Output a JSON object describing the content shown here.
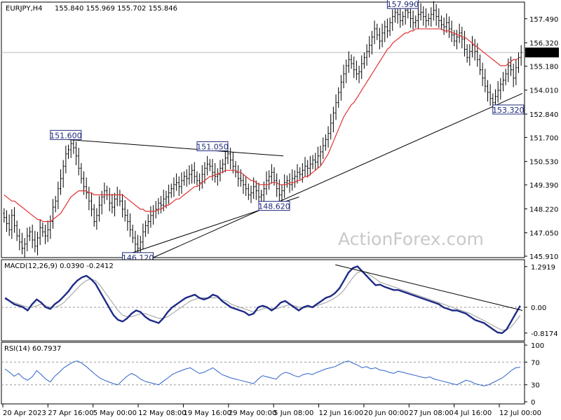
{
  "chart_data": {
    "type": "candlestick",
    "header": {
      "symbol": "EURJPY,H4",
      "ohlc": "155.840 155.969 155.702 155.846"
    },
    "watermark": "ActionForex.com",
    "last_price": "155.846",
    "price_axis": {
      "ticks": [
        "157.490",
        "156.320",
        "155.180",
        "154.010",
        "152.840",
        "151.700",
        "150.530",
        "149.390",
        "148.220",
        "147.050",
        "145.910"
      ],
      "range": [
        145.91,
        158.2
      ]
    },
    "time_axis": [
      "20 Apr 2023",
      "27 Apr 16:00",
      "5 May 00:00",
      "12 May 08:00",
      "19 May 16:00",
      "29 May 00:00",
      "5 Jun 08:00",
      "12 Jun 16:00",
      "20 Jun 00:00",
      "27 Jun 08:00",
      "4 Jul 16:00",
      "12 Jul 00:00"
    ],
    "price_labels": [
      {
        "text": "151.600",
        "value": 151.6
      },
      {
        "text": "151.050",
        "value": 151.05
      },
      {
        "text": "148.620",
        "value": 148.62
      },
      {
        "text": "146.120",
        "value": 146.12
      },
      {
        "text": "157.990",
        "value": 157.99
      },
      {
        "text": "153.320",
        "value": 153.32
      }
    ],
    "closes": [
      147.8,
      147.5,
      147.2,
      147.9,
      147.4,
      146.9,
      146.6,
      146.3,
      146.5,
      146.9,
      147.1,
      146.7,
      146.4,
      146.8,
      147.3,
      147.1,
      146.9,
      147.2,
      147.6,
      148.3,
      148.6,
      149.2,
      149.7,
      150.3,
      150.9,
      151.1,
      151.4,
      151.2,
      150.8,
      150.2,
      149.7,
      149.3,
      149.0,
      148.6,
      148.2,
      147.6,
      147.9,
      148.4,
      148.8,
      149.1,
      148.9,
      148.5,
      148.3,
      148.7,
      148.9,
      148.6,
      148.2,
      147.9,
      147.6,
      147.2,
      146.8,
      146.5,
      146.3,
      146.6,
      147.1,
      147.4,
      147.6,
      147.9,
      148.1,
      148.2,
      148.5,
      148.4,
      148.7,
      148.8,
      149.0,
      149.2,
      149.4,
      149.5,
      149.3,
      149.6,
      149.8,
      149.7,
      149.9,
      150.1,
      149.8,
      149.6,
      149.5,
      149.9,
      150.2,
      150.4,
      150.3,
      150.0,
      149.8,
      149.9,
      150.2,
      150.4,
      150.7,
      150.9,
      150.6,
      150.3,
      150.0,
      149.7,
      149.6,
      149.4,
      149.2,
      148.9,
      149.0,
      149.3,
      149.1,
      148.8,
      148.9,
      149.2,
      149.6,
      149.8,
      150.0,
      149.6,
      149.2,
      148.9,
      149.1,
      149.5,
      149.6,
      149.4,
      149.7,
      149.8,
      150.0,
      149.9,
      150.1,
      150.3,
      150.2,
      150.4,
      150.6,
      150.5,
      150.8,
      151.0,
      151.3,
      151.6,
      151.9,
      152.4,
      152.9,
      153.4,
      153.9,
      154.4,
      154.8,
      155.2,
      155.5,
      155.3,
      155.0,
      154.8,
      154.9,
      155.3,
      155.6,
      155.9,
      156.2,
      156.6,
      157.0,
      156.7,
      156.4,
      156.8,
      157.1,
      156.9,
      157.3,
      157.6,
      157.8,
      157.7,
      157.4,
      157.6,
      157.9,
      157.8,
      157.5,
      157.3,
      157.4,
      157.7,
      157.8,
      157.6,
      157.4,
      157.5,
      157.7,
      157.9,
      157.6,
      157.4,
      157.2,
      157.1,
      157.3,
      157.0,
      156.7,
      156.4,
      156.6,
      156.8,
      156.5,
      156.0,
      155.6,
      155.9,
      156.2,
      155.9,
      155.5,
      155.0,
      154.6,
      154.2,
      153.9,
      153.6,
      153.4,
      153.7,
      154.0,
      154.3,
      154.5,
      154.8,
      155.2,
      155.0,
      154.6,
      155.1,
      155.6,
      155.85
    ],
    "ma_closes": [
      148.9,
      148.8,
      148.7,
      148.6,
      148.6,
      148.5,
      148.4,
      148.3,
      148.2,
      148.1,
      148.0,
      147.9,
      147.8,
      147.7,
      147.7,
      147.6,
      147.6,
      147.6,
      147.6,
      147.7,
      147.8,
      147.9,
      148.0,
      148.2,
      148.4,
      148.6,
      148.8,
      148.9,
      149.0,
      149.1,
      149.1,
      149.1,
      149.1,
      149.0,
      149.0,
      148.9,
      148.9,
      148.9,
      148.9,
      148.9,
      148.9,
      148.9,
      148.9,
      148.9,
      148.9,
      148.9,
      148.9,
      148.8,
      148.7,
      148.6,
      148.5,
      148.4,
      148.3,
      148.2,
      148.2,
      148.1,
      148.1,
      148.1,
      148.1,
      148.1,
      148.2,
      148.2,
      148.3,
      148.4,
      148.4,
      148.5,
      148.6,
      148.7,
      148.7,
      148.8,
      148.9,
      149.0,
      149.1,
      149.2,
      149.3,
      149.3,
      149.4,
      149.5,
      149.6,
      149.7,
      149.8,
      149.8,
      149.9,
      149.9,
      150.0,
      150.0,
      150.1,
      150.1,
      150.1,
      150.1,
      150.1,
      150.0,
      150.0,
      149.9,
      149.8,
      149.7,
      149.6,
      149.6,
      149.5,
      149.4,
      149.4,
      149.4,
      149.4,
      149.4,
      149.5,
      149.5,
      149.5,
      149.4,
      149.4,
      149.4,
      149.4,
      149.5,
      149.5,
      149.5,
      149.6,
      149.6,
      149.7,
      149.8,
      149.8,
      149.9,
      150.0,
      150.1,
      150.2,
      150.3,
      150.5,
      150.7,
      150.9,
      151.2,
      151.5,
      151.8,
      152.1,
      152.4,
      152.7,
      152.9,
      153.1,
      153.3,
      153.4,
      153.6,
      153.8,
      154.0,
      154.2,
      154.4,
      154.6,
      154.8,
      155.0,
      155.2,
      155.4,
      155.6,
      155.8,
      156.0,
      156.1,
      156.3,
      156.4,
      156.5,
      156.6,
      156.7,
      156.8,
      156.8,
      156.9,
      156.9,
      157.0,
      157.0,
      157.0,
      157.0,
      157.0,
      157.0,
      157.0,
      157.0,
      157.0,
      157.0,
      157.0,
      156.9,
      156.9,
      156.9,
      156.8,
      156.8,
      156.7,
      156.7,
      156.6,
      156.6,
      156.5,
      156.4,
      156.3,
      156.2,
      156.1,
      156.0,
      155.9,
      155.8,
      155.7,
      155.6,
      155.5,
      155.4,
      155.3,
      155.2,
      155.2,
      155.2,
      155.3,
      155.4,
      155.5,
      155.5,
      155.55
    ],
    "trendlines": [
      {
        "x1": 0.125,
        "v1": 151.6,
        "x2": 0.54,
        "v2": 150.8
      },
      {
        "x1": 0.29,
        "v1": 145.85,
        "x2": 1.0,
        "v2": 153.85
      },
      {
        "x1": 0.24,
        "v1": 146.0,
        "x2": 0.57,
        "v2": 148.8
      }
    ],
    "macd": {
      "title": "MACD(12,26,9) 0.0390 -0.2412",
      "ticks": [
        "1.2919",
        "0.00",
        "-0.8174"
      ],
      "range": [
        -1.0,
        1.4
      ],
      "main": [
        0.3,
        0.2,
        0.1,
        0.05,
        0.0,
        -0.1,
        0.1,
        0.25,
        0.15,
        0.0,
        -0.05,
        0.1,
        0.2,
        0.35,
        0.5,
        0.7,
        0.85,
        0.95,
        1.0,
        0.9,
        0.75,
        0.5,
        0.25,
        0.0,
        -0.25,
        -0.4,
        -0.45,
        -0.35,
        -0.2,
        -0.1,
        -0.15,
        -0.3,
        -0.4,
        -0.45,
        -0.5,
        -0.35,
        -0.15,
        0.0,
        0.1,
        0.2,
        0.3,
        0.35,
        0.4,
        0.3,
        0.25,
        0.3,
        0.4,
        0.35,
        0.2,
        0.1,
        0.0,
        -0.05,
        -0.1,
        -0.15,
        -0.25,
        -0.2,
        0.0,
        0.05,
        0.0,
        -0.1,
        0.0,
        0.15,
        0.2,
        0.1,
        0.0,
        -0.1,
        0.0,
        0.05,
        0.0,
        0.1,
        0.2,
        0.3,
        0.35,
        0.45,
        0.6,
        0.85,
        1.1,
        1.25,
        1.3,
        1.15,
        1.0,
        0.85,
        0.7,
        0.72,
        0.65,
        0.6,
        0.55,
        0.55,
        0.5,
        0.45,
        0.4,
        0.35,
        0.3,
        0.25,
        0.2,
        0.15,
        0.1,
        0.0,
        -0.05,
        -0.1,
        -0.1,
        -0.15,
        -0.2,
        -0.3,
        -0.4,
        -0.45,
        -0.5,
        -0.6,
        -0.7,
        -0.8,
        -0.82,
        -0.7,
        -0.45,
        -0.2,
        0.05
      ],
      "signal": [
        0.25,
        0.2,
        0.15,
        0.1,
        0.05,
        0.0,
        0.0,
        0.05,
        0.1,
        0.05,
        0.0,
        0.0,
        0.05,
        0.15,
        0.3,
        0.45,
        0.6,
        0.75,
        0.85,
        0.9,
        0.85,
        0.7,
        0.5,
        0.3,
        0.1,
        -0.1,
        -0.25,
        -0.3,
        -0.3,
        -0.25,
        -0.2,
        -0.2,
        -0.25,
        -0.3,
        -0.35,
        -0.35,
        -0.3,
        -0.2,
        -0.1,
        0.0,
        0.1,
        0.2,
        0.25,
        0.3,
        0.3,
        0.3,
        0.3,
        0.3,
        0.25,
        0.2,
        0.1,
        0.05,
        0.0,
        -0.05,
        -0.1,
        -0.15,
        -0.1,
        -0.05,
        -0.02,
        -0.05,
        -0.05,
        0.0,
        0.05,
        0.08,
        0.05,
        0.0,
        -0.02,
        0.0,
        0.02,
        0.05,
        0.1,
        0.15,
        0.22,
        0.3,
        0.4,
        0.55,
        0.75,
        0.95,
        1.1,
        1.15,
        1.1,
        1.0,
        0.9,
        0.8,
        0.75,
        0.7,
        0.65,
        0.6,
        0.55,
        0.5,
        0.45,
        0.4,
        0.35,
        0.3,
        0.25,
        0.2,
        0.15,
        0.1,
        0.05,
        0.0,
        -0.05,
        -0.1,
        -0.15,
        -0.2,
        -0.28,
        -0.35,
        -0.42,
        -0.5,
        -0.58,
        -0.66,
        -0.72,
        -0.72,
        -0.62,
        -0.45,
        -0.25
      ],
      "signal_line": {
        "x1": 0.64,
        "v1": 1.35,
        "x2": 1.0,
        "v2": -0.1
      }
    },
    "rsi": {
      "title": "RSI(14) 60.7937",
      "ticks": [
        "100",
        "70",
        "30",
        "0"
      ],
      "range": [
        0,
        100
      ],
      "values": [
        58,
        52,
        45,
        50,
        42,
        38,
        44,
        55,
        48,
        40,
        35,
        45,
        52,
        60,
        65,
        70,
        72,
        68,
        62,
        55,
        48,
        42,
        38,
        35,
        32,
        30,
        38,
        45,
        50,
        46,
        40,
        36,
        34,
        32,
        30,
        36,
        42,
        48,
        52,
        55,
        58,
        60,
        55,
        50,
        52,
        56,
        60,
        54,
        48,
        45,
        42,
        40,
        38,
        36,
        34,
        32,
        40,
        46,
        44,
        42,
        40,
        48,
        52,
        50,
        46,
        44,
        48,
        50,
        48,
        52,
        55,
        58,
        60,
        62,
        66,
        70,
        72,
        68,
        65,
        60,
        62,
        58,
        60,
        56,
        55,
        52,
        50,
        54,
        52,
        50,
        48,
        46,
        44,
        42,
        44,
        40,
        38,
        36,
        34,
        32,
        30,
        34,
        38,
        36,
        32,
        30,
        28,
        30,
        34,
        38,
        42,
        48,
        55,
        60,
        61
      ]
    }
  }
}
